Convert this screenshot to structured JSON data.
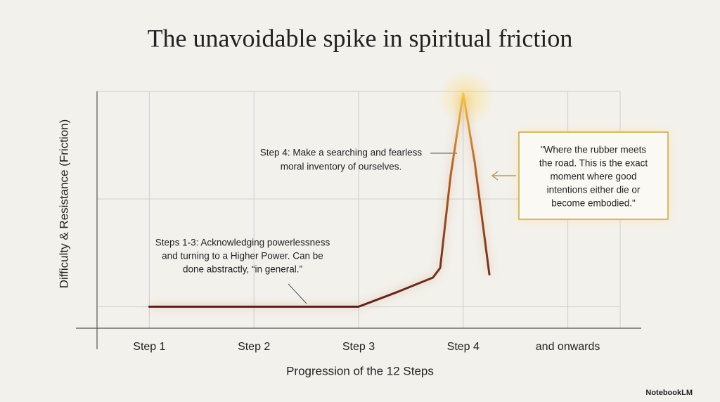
{
  "chart_data": {
    "type": "line",
    "title": "The unavoidable spike in spiritual friction",
    "x_label": "Progression of the 12 Steps",
    "y_label": "Difficulty & Resistance (Friction)",
    "xlim": [
      0.5,
      5.5
    ],
    "xticks": [
      {
        "value": 1,
        "label": "Step 1"
      },
      {
        "value": 2,
        "label": "Step 2"
      },
      {
        "value": 3,
        "label": "Step 3"
      },
      {
        "value": 4,
        "label": "Step 4"
      },
      {
        "value": 5,
        "label": "and onwards"
      }
    ],
    "ylim": [
      0,
      11
    ],
    "ygrid": [
      1,
      6,
      11
    ],
    "grid": true,
    "series": [
      {
        "color": "#5a1e1e",
        "x": [
          1,
          3,
          3.38,
          3.71,
          3.78,
          3.88,
          4,
          4.11,
          4.25
        ],
        "values": [
          1,
          1,
          1.7,
          2.35,
          2.8,
          7.1,
          10.9,
          7.7,
          2.5
        ]
      }
    ],
    "annotations": [
      {
        "lines": [
          "Step 4: Make a searching and fearless",
          "moral inventory of ourselves."
        ]
      },
      {
        "lines": [
          "Steps 1-3: Acknowledging powerlessness",
          "and turning to a Higher Power. Can be",
          "done abstractly, “in general.”"
        ]
      },
      {
        "lines": [
          "\"Where the rubber meets",
          "the road. This is the exact",
          "moment where good",
          "intentions either die or",
          "become embodied.\""
        ]
      }
    ]
  },
  "footer": {
    "brand": "NotebookLM"
  }
}
